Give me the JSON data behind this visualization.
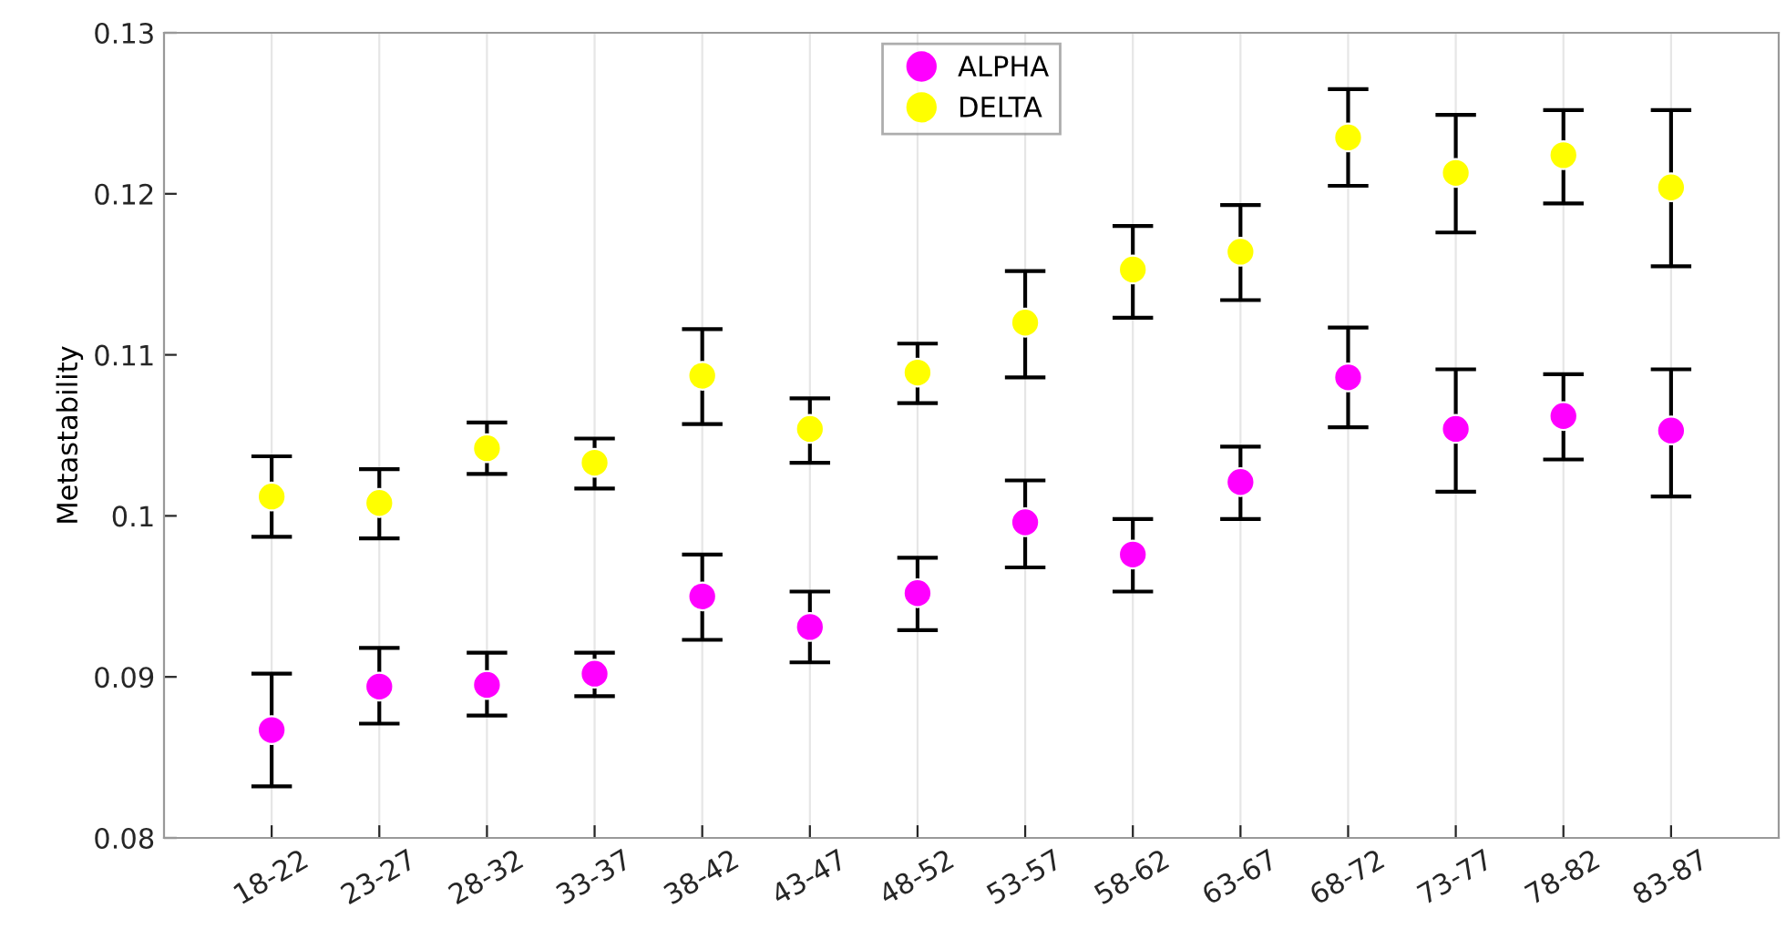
{
  "chart_data": {
    "type": "scatter",
    "ylabel": "Metastability",
    "categories": [
      "18-22",
      "23-27",
      "28-32",
      "33-37",
      "38-42",
      "43-47",
      "48-52",
      "53-57",
      "58-62",
      "63-67",
      "68-72",
      "73-77",
      "78-82",
      "83-87"
    ],
    "series": [
      {
        "name": "ALPHA",
        "color": "#ff00ff",
        "values": [
          0.0867,
          0.0894,
          0.0895,
          0.0902,
          0.095,
          0.0931,
          0.0952,
          0.0996,
          0.0976,
          0.1021,
          0.1086,
          0.1054,
          0.1062,
          0.1053
        ],
        "errors": [
          [
            0.0832,
            0.0902
          ],
          [
            0.0871,
            0.0918
          ],
          [
            0.0876,
            0.0915
          ],
          [
            0.0888,
            0.0915
          ],
          [
            0.0923,
            0.0976
          ],
          [
            0.0909,
            0.0953
          ],
          [
            0.0929,
            0.0974
          ],
          [
            0.0968,
            0.1022
          ],
          [
            0.0953,
            0.0998
          ],
          [
            0.0998,
            0.1043
          ],
          [
            0.1055,
            0.1117
          ],
          [
            0.1015,
            0.1091
          ],
          [
            0.1035,
            0.1088
          ],
          [
            0.1012,
            0.1091
          ]
        ]
      },
      {
        "name": "DELTA",
        "color": "#ffff00",
        "values": [
          0.1012,
          0.1008,
          0.1042,
          0.1033,
          0.1087,
          0.1054,
          0.1089,
          0.112,
          0.1153,
          0.1164,
          0.1235,
          0.1213,
          0.1224,
          0.1204
        ],
        "errors": [
          [
            0.0987,
            0.1037
          ],
          [
            0.0986,
            0.1029
          ],
          [
            0.1026,
            0.1058
          ],
          [
            0.1017,
            0.1048
          ],
          [
            0.1057,
            0.1116
          ],
          [
            0.1033,
            0.1073
          ],
          [
            0.107,
            0.1107
          ],
          [
            0.1086,
            0.1152
          ],
          [
            0.1123,
            0.118
          ],
          [
            0.1134,
            0.1193
          ],
          [
            0.1205,
            0.1265
          ],
          [
            0.1176,
            0.1249
          ],
          [
            0.1194,
            0.1252
          ],
          [
            0.1155,
            0.1252
          ]
        ]
      }
    ],
    "ylim": [
      0.08,
      0.13
    ],
    "yticks": [
      0.08,
      0.09,
      0.1,
      0.11,
      0.12,
      0.13
    ],
    "grid": "x",
    "legend": "top",
    "marker": "circle"
  }
}
